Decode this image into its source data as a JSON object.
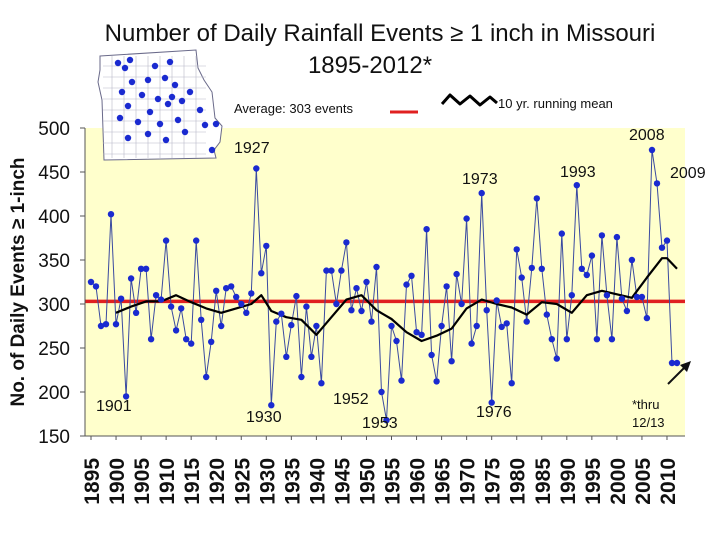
{
  "chart_data": {
    "type": "line",
    "title": "Number of Daily Rainfall Events ≥ 1 inch in Missouri",
    "subtitle": "1895-2012*",
    "ylabel": "No. of Daily Events ≥ 1-inch",
    "xlabel": "",
    "ylim": [
      150,
      500
    ],
    "xlim": [
      1895,
      2012
    ],
    "y_ticks": [
      150,
      200,
      250,
      300,
      350,
      400,
      450,
      500
    ],
    "x_ticks": [
      1895,
      1900,
      1905,
      1910,
      1915,
      1920,
      1925,
      1930,
      1935,
      1940,
      1945,
      1950,
      1955,
      1960,
      1965,
      1970,
      1975,
      1980,
      1985,
      1990,
      1995,
      2000,
      2005,
      2010
    ],
    "background": "#ffffcc",
    "grid": false,
    "legend": {
      "average_label": "Average: 303 events",
      "running_mean_label": "10 yr. running mean"
    },
    "colors": {
      "annual_line": "#3a4aa0",
      "annual_marker": "#1a2ad0",
      "average": "#e02020",
      "running_mean": "#000000",
      "map_dots": "#1a2ad0"
    },
    "average": 303,
    "annotations": [
      {
        "text": "1901",
        "year": 1901
      },
      {
        "text": "1927",
        "year": 1927
      },
      {
        "text": "1930",
        "year": 1930
      },
      {
        "text": "1952",
        "year": 1952
      },
      {
        "text": "1953",
        "year": 1953
      },
      {
        "text": "1973",
        "year": 1973
      },
      {
        "text": "1976",
        "year": 1976
      },
      {
        "text": "1993",
        "year": 1993
      },
      {
        "text": "2008",
        "year": 2008
      },
      {
        "text": "2009",
        "year": 2009
      },
      {
        "text": "*thru 12/13",
        "year": 2012
      }
    ],
    "series": [
      {
        "name": "Annual events",
        "x": [
          1895,
          1896,
          1897,
          1898,
          1899,
          1900,
          1901,
          1902,
          1903,
          1904,
          1905,
          1906,
          1907,
          1908,
          1909,
          1910,
          1911,
          1912,
          1913,
          1914,
          1915,
          1916,
          1917,
          1918,
          1919,
          1920,
          1921,
          1922,
          1923,
          1924,
          1925,
          1926,
          1927,
          1928,
          1929,
          1930,
          1931,
          1932,
          1933,
          1934,
          1935,
          1936,
          1937,
          1938,
          1939,
          1940,
          1941,
          1942,
          1943,
          1944,
          1945,
          1946,
          1947,
          1948,
          1949,
          1950,
          1951,
          1952,
          1953,
          1954,
          1955,
          1956,
          1957,
          1958,
          1959,
          1960,
          1961,
          1962,
          1963,
          1964,
          1965,
          1966,
          1967,
          1968,
          1969,
          1970,
          1971,
          1972,
          1973,
          1974,
          1975,
          1976,
          1977,
          1978,
          1979,
          1980,
          1981,
          1982,
          1983,
          1984,
          1985,
          1986,
          1987,
          1988,
          1989,
          1990,
          1991,
          1992,
          1993,
          1994,
          1995,
          1996,
          1997,
          1998,
          1999,
          2000,
          2001,
          2002,
          2003,
          2004,
          2005,
          2006,
          2007,
          2008,
          2009,
          2010,
          2011,
          2012
        ],
        "y": [
          325,
          320,
          275,
          277,
          402,
          277,
          306,
          195,
          329,
          290,
          340,
          340,
          260,
          310,
          305,
          372,
          297,
          270,
          295,
          260,
          255,
          372,
          282,
          217,
          257,
          315,
          275,
          318,
          320,
          308,
          300,
          290,
          312,
          454,
          335,
          366,
          185,
          280,
          289,
          240,
          276,
          309,
          217,
          297,
          240,
          275,
          210,
          338,
          338,
          300,
          338,
          370,
          293,
          318,
          292,
          325,
          280,
          342,
          200,
          168,
          275,
          258,
          213,
          322,
          332,
          268,
          265,
          385,
          242,
          212,
          275,
          320,
          235,
          334,
          300,
          397,
          255,
          275,
          426,
          293,
          188,
          304,
          274,
          278,
          210,
          362,
          330,
          280,
          341,
          420,
          340,
          288,
          260,
          238,
          380,
          260,
          310,
          435,
          340,
          333,
          355,
          260,
          378,
          310,
          260,
          376,
          306,
          292,
          350,
          308,
          308,
          284,
          475,
          437,
          364,
          372,
          233,
          233
        ]
      },
      {
        "name": "10 yr. running mean",
        "x": [
          1900,
          1903,
          1906,
          1909,
          1912,
          1915,
          1918,
          1921,
          1924,
          1927,
          1929,
          1931,
          1934,
          1937,
          1940,
          1943,
          1946,
          1949,
          1952,
          1955,
          1958,
          1961,
          1964,
          1967,
          1970,
          1973,
          1976,
          1979,
          1982,
          1985,
          1988,
          1991,
          1994,
          1997,
          2000,
          2003,
          2006,
          2009,
          2010,
          2012
        ],
        "y": [
          290,
          297,
          303,
          303,
          310,
          302,
          295,
          290,
          295,
          300,
          310,
          292,
          285,
          282,
          265,
          285,
          305,
          310,
          293,
          283,
          268,
          258,
          264,
          272,
          295,
          305,
          300,
          296,
          288,
          302,
          300,
          290,
          310,
          315,
          311,
          307,
          330,
          352,
          352,
          340
        ]
      }
    ]
  }
}
